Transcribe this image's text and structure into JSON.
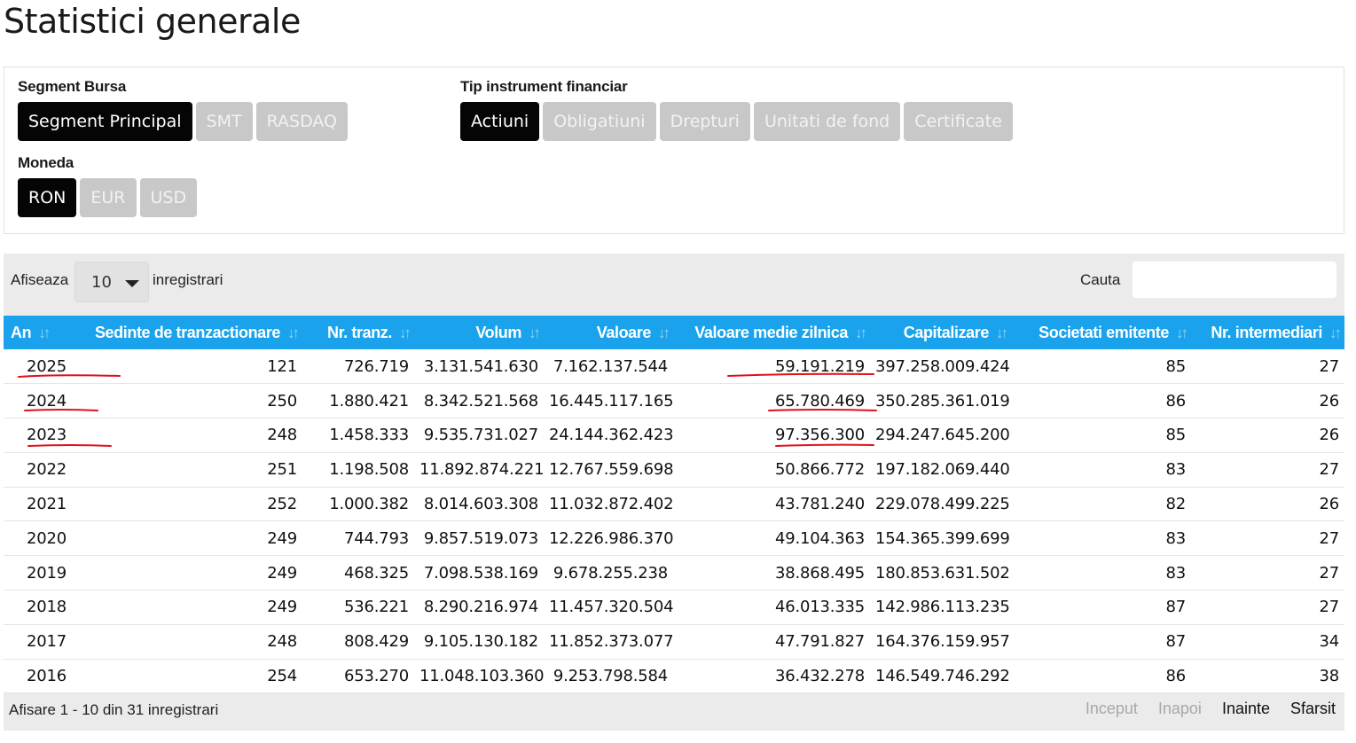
{
  "page": {
    "title": "Statistici generale"
  },
  "filters": {
    "segment": {
      "label": "Segment Bursa",
      "options": [
        "Segment Principal",
        "SMT",
        "RASDAQ"
      ],
      "active": "Segment Principal"
    },
    "instrument": {
      "label": "Tip instrument financiar",
      "options": [
        "Actiuni",
        "Obligatiuni",
        "Drepturi",
        "Unitati de fond",
        "Certificate"
      ],
      "active": "Actiuni"
    },
    "currency": {
      "label": "Moneda",
      "options": [
        "RON",
        "EUR",
        "USD"
      ],
      "active": "RON"
    }
  },
  "table_controls": {
    "show_label": "Afiseaza",
    "page_length": "10",
    "records_label": "inregistrari",
    "search_label": "Cauta",
    "search_value": ""
  },
  "table": {
    "columns": [
      "An",
      "Sedinte de tranzactionare",
      "Nr. tranz.",
      "Volum",
      "Valoare",
      "Valoare medie zilnica",
      "Capitalizare",
      "Societati emitente",
      "Nr. intermediari"
    ],
    "rows": [
      [
        "2025",
        "121",
        "726.719",
        "3.131.541.630",
        "7.162.137.544",
        "59.191.219",
        "397.258.009.424",
        "85",
        "27"
      ],
      [
        "2024",
        "250",
        "1.880.421",
        "8.342.521.568",
        "16.445.117.165",
        "65.780.469",
        "350.285.361.019",
        "86",
        "26"
      ],
      [
        "2023",
        "248",
        "1.458.333",
        "9.535.731.027",
        "24.144.362.423",
        "97.356.300",
        "294.247.645.200",
        "85",
        "26"
      ],
      [
        "2022",
        "251",
        "1.198.508",
        "11.892.874.221",
        "12.767.559.698",
        "50.866.772",
        "197.182.069.440",
        "83",
        "27"
      ],
      [
        "2021",
        "252",
        "1.000.382",
        "8.014.603.308",
        "11.032.872.402",
        "43.781.240",
        "229.078.499.225",
        "82",
        "26"
      ],
      [
        "2020",
        "249",
        "744.793",
        "9.857.519.073",
        "12.226.986.370",
        "49.104.363",
        "154.365.399.699",
        "83",
        "27"
      ],
      [
        "2019",
        "249",
        "468.325",
        "7.098.538.169",
        "9.678.255.238",
        "38.868.495",
        "180.853.631.502",
        "83",
        "27"
      ],
      [
        "2018",
        "249",
        "536.221",
        "8.290.216.974",
        "11.457.320.504",
        "46.013.335",
        "142.986.113.235",
        "87",
        "27"
      ],
      [
        "2017",
        "248",
        "808.429",
        "9.105.130.182",
        "11.852.373.077",
        "47.791.827",
        "164.376.159.957",
        "87",
        "34"
      ],
      [
        "2016",
        "254",
        "653.270",
        "11.048.103.360",
        "9.253.798.584",
        "36.432.278",
        "146.549.746.292",
        "86",
        "38"
      ]
    ]
  },
  "footer": {
    "info": "Afisare 1 - 10 din 31 inregistrari",
    "pager": {
      "first": "Inceput",
      "prev": "Inapoi",
      "next": "Inainte",
      "last": "Sfarsit"
    }
  },
  "colors": {
    "header_blue": "#1aa3ec",
    "active_button": "#050505",
    "inactive_button": "#c8c8c8",
    "annotation_red": "#e0101a"
  }
}
